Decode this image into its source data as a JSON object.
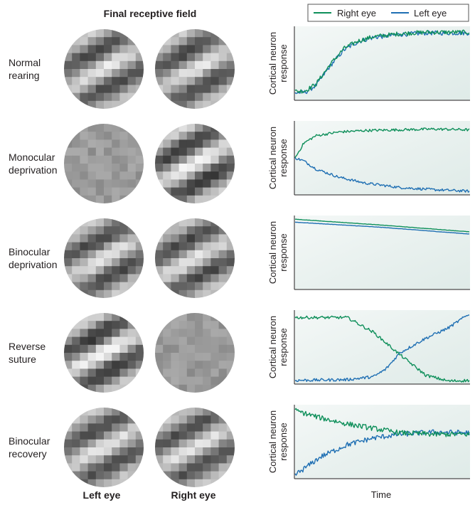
{
  "header": {
    "title": "Final receptive field"
  },
  "legend": {
    "right_eye": {
      "label": "Right eye",
      "color": "#0e8f5a"
    },
    "left_eye": {
      "label": "Left eye",
      "color": "#1f6fb3"
    }
  },
  "columns": {
    "left": "Left eye",
    "right": "Right eye"
  },
  "y_axis_label": [
    "Cortical neuron",
    "response"
  ],
  "x_axis_label": "Time",
  "rows": [
    {
      "label": [
        "Normal",
        "rearing"
      ],
      "left_rf": "tuned",
      "right_rf": "tuned"
    },
    {
      "label": [
        "Monocular",
        "deprivation"
      ],
      "left_rf": "noise",
      "right_rf": "tuned-strong"
    },
    {
      "label": [
        "Binocular",
        "deprivation"
      ],
      "left_rf": "tuned",
      "right_rf": "tuned"
    },
    {
      "label": [
        "Reverse",
        "suture"
      ],
      "left_rf": "tuned-strong",
      "right_rf": "noise"
    },
    {
      "label": [
        "Binocular",
        "recovery"
      ],
      "left_rf": "tuned",
      "right_rf": "tuned"
    }
  ],
  "chart_data": [
    {
      "type": "line",
      "title": "Normal rearing",
      "xlabel": "Time",
      "ylabel": "Cortical neuron response",
      "xlim": [
        0,
        1
      ],
      "ylim": [
        0,
        1
      ],
      "series": [
        {
          "name": "Right eye",
          "x": [
            0,
            0.06,
            0.12,
            0.2,
            0.28,
            0.36,
            0.45,
            0.6,
            0.75,
            0.9,
            1.0
          ],
          "y": [
            0.12,
            0.13,
            0.22,
            0.48,
            0.7,
            0.8,
            0.86,
            0.9,
            0.92,
            0.92,
            0.92
          ]
        },
        {
          "name": "Left eye",
          "x": [
            0,
            0.06,
            0.12,
            0.2,
            0.28,
            0.36,
            0.45,
            0.6,
            0.75,
            0.9,
            1.0
          ],
          "y": [
            0.1,
            0.11,
            0.2,
            0.46,
            0.68,
            0.79,
            0.85,
            0.89,
            0.91,
            0.91,
            0.91
          ]
        }
      ]
    },
    {
      "type": "line",
      "title": "Monocular deprivation",
      "xlabel": "Time",
      "ylabel": "Cortical neuron response",
      "xlim": [
        0,
        1
      ],
      "ylim": [
        0,
        1
      ],
      "series": [
        {
          "name": "Right eye",
          "x": [
            0,
            0.05,
            0.12,
            0.25,
            0.4,
            0.6,
            0.8,
            1.0
          ],
          "y": [
            0.5,
            0.7,
            0.8,
            0.85,
            0.87,
            0.88,
            0.89,
            0.88
          ]
        },
        {
          "name": "Left eye",
          "x": [
            0,
            0.05,
            0.12,
            0.25,
            0.4,
            0.6,
            0.8,
            1.0
          ],
          "y": [
            0.5,
            0.46,
            0.35,
            0.24,
            0.16,
            0.1,
            0.07,
            0.05
          ]
        }
      ]
    },
    {
      "type": "line",
      "title": "Binocular deprivation",
      "xlabel": "Time",
      "ylabel": "Cortical neuron response",
      "xlim": [
        0,
        1
      ],
      "ylim": [
        0,
        1
      ],
      "series": [
        {
          "name": "Right eye",
          "x": [
            0,
            0.5,
            1.0
          ],
          "y": [
            0.95,
            0.87,
            0.78
          ]
        },
        {
          "name": "Left eye",
          "x": [
            0,
            0.5,
            1.0
          ],
          "y": [
            0.91,
            0.84,
            0.75
          ]
        }
      ]
    },
    {
      "type": "line",
      "title": "Reverse suture",
      "xlabel": "Time",
      "ylabel": "Cortical neuron response",
      "xlim": [
        0,
        1
      ],
      "ylim": [
        0,
        1
      ],
      "series": [
        {
          "name": "Right eye",
          "x": [
            0,
            0.3,
            0.45,
            0.6,
            0.75,
            0.88,
            1.0
          ],
          "y": [
            0.9,
            0.9,
            0.7,
            0.4,
            0.12,
            0.04,
            0.05
          ]
        },
        {
          "name": "Left eye",
          "x": [
            0,
            0.3,
            0.45,
            0.52,
            0.6,
            0.75,
            0.88,
            1.0
          ],
          "y": [
            0.05,
            0.06,
            0.1,
            0.2,
            0.42,
            0.62,
            0.76,
            0.95
          ]
        }
      ]
    },
    {
      "type": "line",
      "title": "Binocular recovery",
      "xlabel": "Time",
      "ylabel": "Cortical neuron response",
      "xlim": [
        0,
        1
      ],
      "ylim": [
        0,
        1
      ],
      "series": [
        {
          "name": "Right eye",
          "x": [
            0,
            0.15,
            0.3,
            0.45,
            0.6,
            0.8,
            1.0
          ],
          "y": [
            0.92,
            0.82,
            0.74,
            0.68,
            0.62,
            0.6,
            0.6
          ]
        },
        {
          "name": "Left eye",
          "x": [
            0,
            0.15,
            0.3,
            0.45,
            0.6,
            0.8,
            1.0
          ],
          "y": [
            0.05,
            0.3,
            0.46,
            0.55,
            0.6,
            0.63,
            0.62
          ]
        }
      ]
    }
  ]
}
